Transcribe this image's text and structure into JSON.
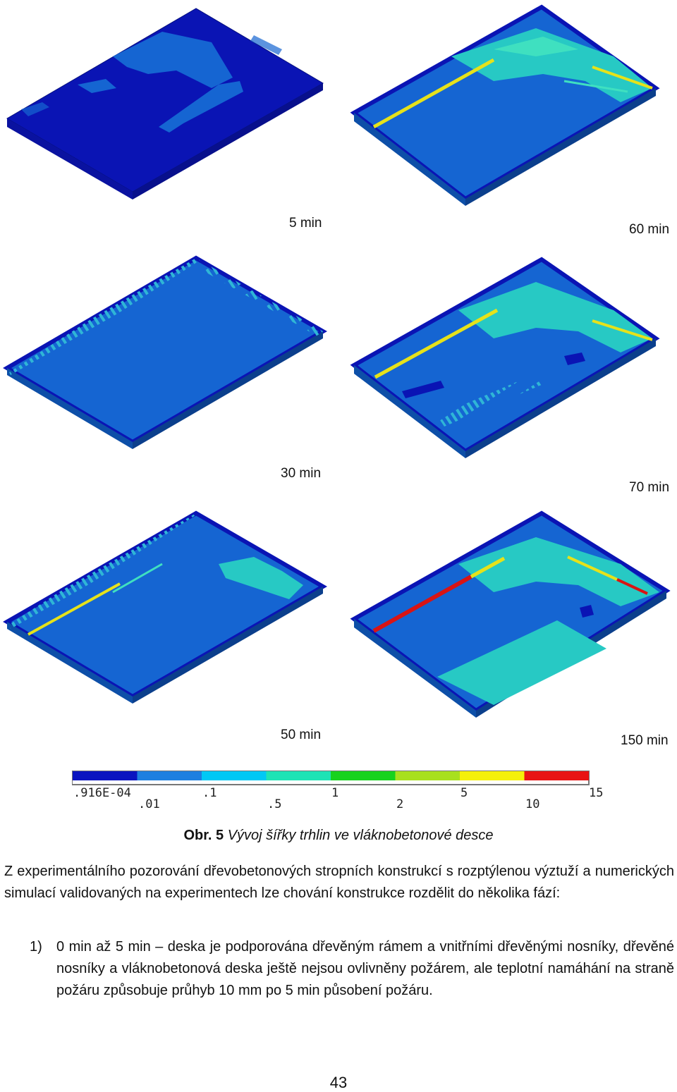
{
  "figure": {
    "panels": [
      {
        "time_label": "5 min"
      },
      {
        "time_label": "60 min"
      },
      {
        "time_label": "30 min"
      },
      {
        "time_label": "70 min"
      },
      {
        "time_label": "50 min"
      },
      {
        "time_label": "150 min"
      }
    ],
    "legend": {
      "colors": [
        "#0a14c0",
        "#1e7fe0",
        "#00c8f5",
        "#1ee3b5",
        "#18d21e",
        "#a8e01e",
        "#f5f00a",
        "#e81414"
      ],
      "upper_ticks": [
        ".916E-04",
        ".1",
        "1",
        "5",
        "15"
      ],
      "lower_ticks": [
        ".01",
        ".5",
        "2",
        "10"
      ]
    },
    "colors": {
      "background": "#0a14b4",
      "slab": "#1565d2",
      "slab_edge": "#0d4fa8",
      "crack_medium": "#27c9c4",
      "crack_light": "#3fe0c0",
      "crack_yellow": "#e6e21a",
      "crack_red": "#d91414"
    }
  },
  "caption": {
    "label": "Obr. 5",
    "text": " Vývoj šířky trhlin ve vláknobetonové desce"
  },
  "paragraph": "Z experimentálního pozorování dřevobetonových stropních konstrukcí s rozptýlenou výztuží a numerických simulací validovaných na experimentech lze chování konstrukce rozdělit do několika fází:",
  "list": [
    {
      "number": "1)",
      "text": "0 min až 5 min – deska je podporována dřevěným rámem a vnitřními dřevěnými nosníky, dřevěné nosníky a vláknobetonová deska ještě nejsou ovlivněny požárem, ale teplotní namáhání na straně požáru způsobuje průhyb 10 mm po 5 min působení požáru."
    }
  ],
  "page_number": "43"
}
